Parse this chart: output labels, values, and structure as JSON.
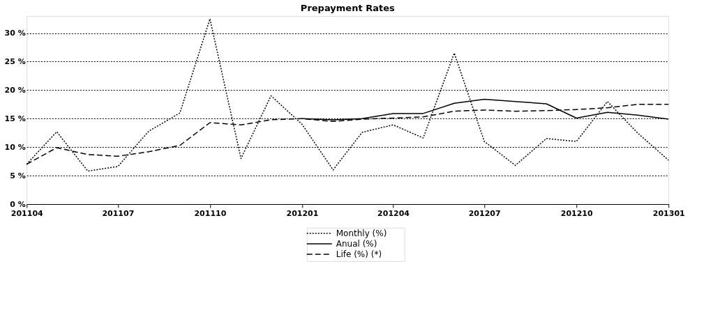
{
  "chart_data": {
    "type": "line",
    "title": "Prepayment Rates",
    "x": [
      "2011-04",
      "2011-05",
      "2011-06",
      "2011-07",
      "2011-08",
      "2011-09",
      "2011-10",
      "2011-11",
      "2011-12",
      "2012-01",
      "2012-02",
      "2012-03",
      "2012-04",
      "2012-05",
      "2012-06",
      "2012-07",
      "2012-08",
      "2012-09",
      "2012-10",
      "2012-11",
      "2012-12",
      "2013-01"
    ],
    "xlim": [
      "2011-04",
      "2013-01"
    ],
    "xticks": [
      {
        "value": "2011-04",
        "label": "201104"
      },
      {
        "value": "2011-07",
        "label": "201107"
      },
      {
        "value": "2011-10",
        "label": "201110"
      },
      {
        "value": "2012-01",
        "label": "201201"
      },
      {
        "value": "2012-04",
        "label": "201204"
      },
      {
        "value": "2012-07",
        "label": "201207"
      },
      {
        "value": "2012-10",
        "label": "201210"
      },
      {
        "value": "2013-01",
        "label": "201301"
      }
    ],
    "series": [
      {
        "name": "Monthly (%)",
        "color": "#000000",
        "line_style": "dotted",
        "values": [
          7,
          12.7,
          5.8,
          6.6,
          12.8,
          16,
          32.5,
          8,
          19,
          14,
          6,
          12.6,
          13.9,
          11.6,
          26.5,
          11,
          6.8,
          11.5,
          11,
          18,
          12.5,
          7.7
        ]
      },
      {
        "name": "Anual (%)",
        "color": "#000000",
        "line_style": "solid",
        "values": [
          null,
          null,
          null,
          null,
          null,
          null,
          null,
          null,
          null,
          15,
          14.8,
          15,
          15.9,
          15.9,
          17.7,
          18.4,
          18,
          17.6,
          15.1,
          16.1,
          15.6,
          14.9
        ]
      },
      {
        "name": "Life (%) (*)",
        "color": "#000000",
        "line_style": "dashed",
        "values": [
          7,
          9.9,
          8.7,
          8.4,
          9.2,
          10.3,
          14.3,
          13.9,
          14.8,
          15,
          14.5,
          14.9,
          15.1,
          15.3,
          16.3,
          16.5,
          16.3,
          16.4,
          16.6,
          16.9,
          17.5,
          17.5
        ]
      }
    ],
    "ylim": [
      0,
      33
    ],
    "yticks": [
      {
        "value": 0,
        "label": "0 %"
      },
      {
        "value": 5,
        "label": "5 %"
      },
      {
        "value": 10,
        "label": "10 %"
      },
      {
        "value": 15,
        "label": "15 %"
      },
      {
        "value": 20,
        "label": "20 %"
      },
      {
        "value": 25,
        "label": "25 %"
      },
      {
        "value": 30,
        "label": "30 %"
      }
    ],
    "grid": "y",
    "legend": "bottom",
    "marker": "none"
  }
}
